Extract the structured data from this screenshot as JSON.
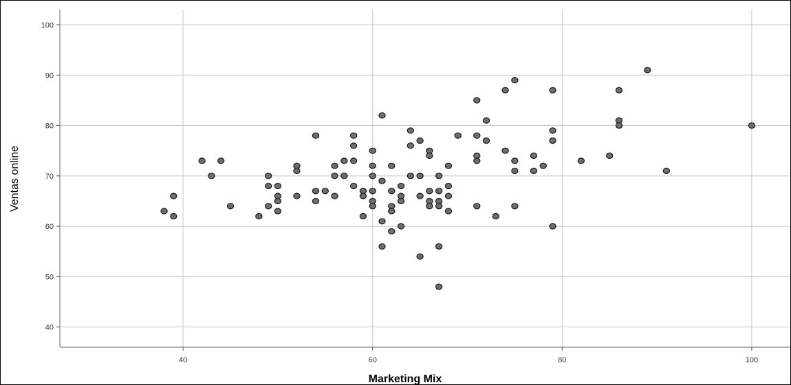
{
  "chart_data": {
    "type": "scatter",
    "title": "",
    "xlabel": "Marketing Mix",
    "ylabel": "Ventas online",
    "xlim": [
      27,
      104
    ],
    "ylim": [
      36,
      103
    ],
    "xticks": [
      "40",
      "60",
      "80",
      "100"
    ],
    "yticks": [
      "40",
      "50",
      "60",
      "70",
      "80",
      "90",
      "100"
    ],
    "grid": true,
    "marker_color": "#6e6e6e",
    "points": [
      {
        "x": 38,
        "y": 63
      },
      {
        "x": 39,
        "y": 66
      },
      {
        "x": 39,
        "y": 62
      },
      {
        "x": 42,
        "y": 73
      },
      {
        "x": 43,
        "y": 70
      },
      {
        "x": 44,
        "y": 73
      },
      {
        "x": 45,
        "y": 64
      },
      {
        "x": 48,
        "y": 62
      },
      {
        "x": 49,
        "y": 70
      },
      {
        "x": 49,
        "y": 68
      },
      {
        "x": 49,
        "y": 64
      },
      {
        "x": 50,
        "y": 68
      },
      {
        "x": 50,
        "y": 66
      },
      {
        "x": 50,
        "y": 65
      },
      {
        "x": 50,
        "y": 63
      },
      {
        "x": 52,
        "y": 72
      },
      {
        "x": 52,
        "y": 71
      },
      {
        "x": 52,
        "y": 66
      },
      {
        "x": 54,
        "y": 78
      },
      {
        "x": 54,
        "y": 67
      },
      {
        "x": 54,
        "y": 65
      },
      {
        "x": 55,
        "y": 67
      },
      {
        "x": 56,
        "y": 72
      },
      {
        "x": 56,
        "y": 70
      },
      {
        "x": 56,
        "y": 66
      },
      {
        "x": 57,
        "y": 73
      },
      {
        "x": 57,
        "y": 70
      },
      {
        "x": 58,
        "y": 78
      },
      {
        "x": 58,
        "y": 76
      },
      {
        "x": 58,
        "y": 73
      },
      {
        "x": 58,
        "y": 68
      },
      {
        "x": 59,
        "y": 67
      },
      {
        "x": 59,
        "y": 66
      },
      {
        "x": 59,
        "y": 62
      },
      {
        "x": 60,
        "y": 75
      },
      {
        "x": 60,
        "y": 72
      },
      {
        "x": 60,
        "y": 70
      },
      {
        "x": 60,
        "y": 67
      },
      {
        "x": 60,
        "y": 65
      },
      {
        "x": 60,
        "y": 64
      },
      {
        "x": 61,
        "y": 82
      },
      {
        "x": 61,
        "y": 69
      },
      {
        "x": 61,
        "y": 61
      },
      {
        "x": 61,
        "y": 56
      },
      {
        "x": 62,
        "y": 72
      },
      {
        "x": 62,
        "y": 67
      },
      {
        "x": 62,
        "y": 64
      },
      {
        "x": 62,
        "y": 63
      },
      {
        "x": 62,
        "y": 59
      },
      {
        "x": 63,
        "y": 68
      },
      {
        "x": 63,
        "y": 66
      },
      {
        "x": 63,
        "y": 65
      },
      {
        "x": 63,
        "y": 60
      },
      {
        "x": 64,
        "y": 79
      },
      {
        "x": 64,
        "y": 76
      },
      {
        "x": 64,
        "y": 70
      },
      {
        "x": 65,
        "y": 77
      },
      {
        "x": 65,
        "y": 70
      },
      {
        "x": 65,
        "y": 66
      },
      {
        "x": 65,
        "y": 54
      },
      {
        "x": 66,
        "y": 75
      },
      {
        "x": 66,
        "y": 74
      },
      {
        "x": 66,
        "y": 67
      },
      {
        "x": 66,
        "y": 65
      },
      {
        "x": 66,
        "y": 64
      },
      {
        "x": 67,
        "y": 70
      },
      {
        "x": 67,
        "y": 67
      },
      {
        "x": 67,
        "y": 65
      },
      {
        "x": 67,
        "y": 64
      },
      {
        "x": 67,
        "y": 56
      },
      {
        "x": 67,
        "y": 48
      },
      {
        "x": 68,
        "y": 72
      },
      {
        "x": 68,
        "y": 68
      },
      {
        "x": 68,
        "y": 66
      },
      {
        "x": 68,
        "y": 63
      },
      {
        "x": 69,
        "y": 78
      },
      {
        "x": 71,
        "y": 85
      },
      {
        "x": 71,
        "y": 78
      },
      {
        "x": 71,
        "y": 74
      },
      {
        "x": 71,
        "y": 73
      },
      {
        "x": 71,
        "y": 64
      },
      {
        "x": 72,
        "y": 81
      },
      {
        "x": 72,
        "y": 77
      },
      {
        "x": 73,
        "y": 62
      },
      {
        "x": 74,
        "y": 87
      },
      {
        "x": 74,
        "y": 75
      },
      {
        "x": 75,
        "y": 89
      },
      {
        "x": 75,
        "y": 73
      },
      {
        "x": 75,
        "y": 71
      },
      {
        "x": 75,
        "y": 64
      },
      {
        "x": 77,
        "y": 74
      },
      {
        "x": 77,
        "y": 71
      },
      {
        "x": 78,
        "y": 72
      },
      {
        "x": 79,
        "y": 87
      },
      {
        "x": 79,
        "y": 79
      },
      {
        "x": 79,
        "y": 77
      },
      {
        "x": 79,
        "y": 60
      },
      {
        "x": 82,
        "y": 73
      },
      {
        "x": 85,
        "y": 74
      },
      {
        "x": 86,
        "y": 87
      },
      {
        "x": 86,
        "y": 81
      },
      {
        "x": 86,
        "y": 80
      },
      {
        "x": 89,
        "y": 91
      },
      {
        "x": 91,
        "y": 71
      },
      {
        "x": 100,
        "y": 80
      }
    ]
  }
}
